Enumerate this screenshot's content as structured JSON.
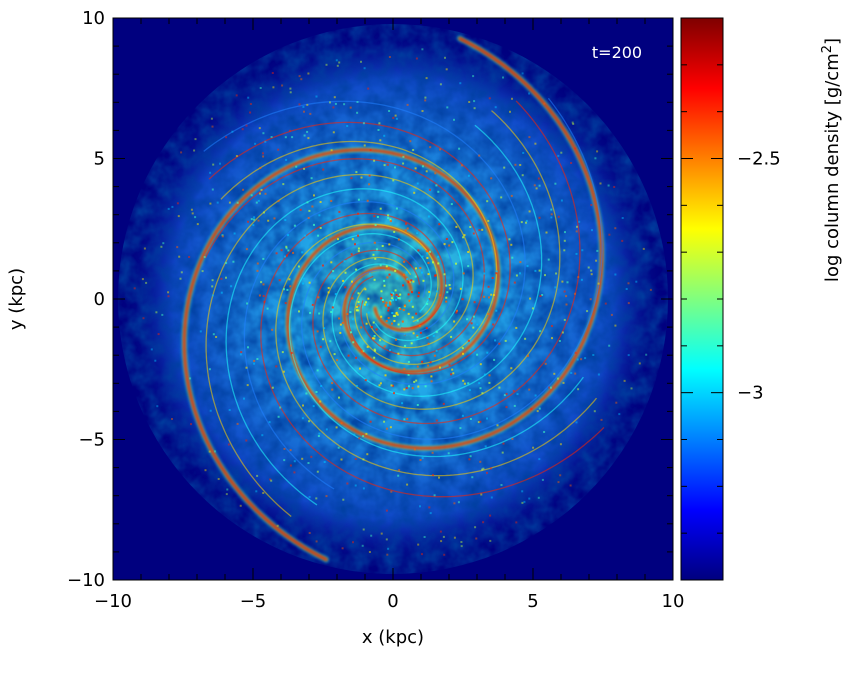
{
  "chart_data": {
    "type": "heatmap",
    "title": "",
    "annotation": "t=200",
    "xlabel": "x (kpc)",
    "ylabel": "y (kpc)",
    "xlim": [
      -10,
      10
    ],
    "ylim": [
      -10,
      10
    ],
    "x_ticks": [
      -10,
      -5,
      0,
      5,
      10
    ],
    "y_ticks": [
      -10,
      -5,
      0,
      5,
      10
    ],
    "x_tick_labels": [
      "−10",
      "−5",
      "0",
      "5",
      "10"
    ],
    "y_tick_labels": [
      "−10",
      "−5",
      "0",
      "5",
      "10"
    ],
    "colorbar": {
      "label_prefix": "log column density [g/cm",
      "label_sup": "2",
      "label_suffix": "]",
      "range": [
        -3.4,
        -2.2
      ],
      "ticks": [
        -2.5,
        -3
      ],
      "tick_labels": [
        "−2.5",
        "−3"
      ],
      "colormap": "jet"
    },
    "image": {
      "description_free": true,
      "background_value": -3.4,
      "disk_radius": 9.8,
      "arm_pattern": "two-armed spiral"
    }
  }
}
